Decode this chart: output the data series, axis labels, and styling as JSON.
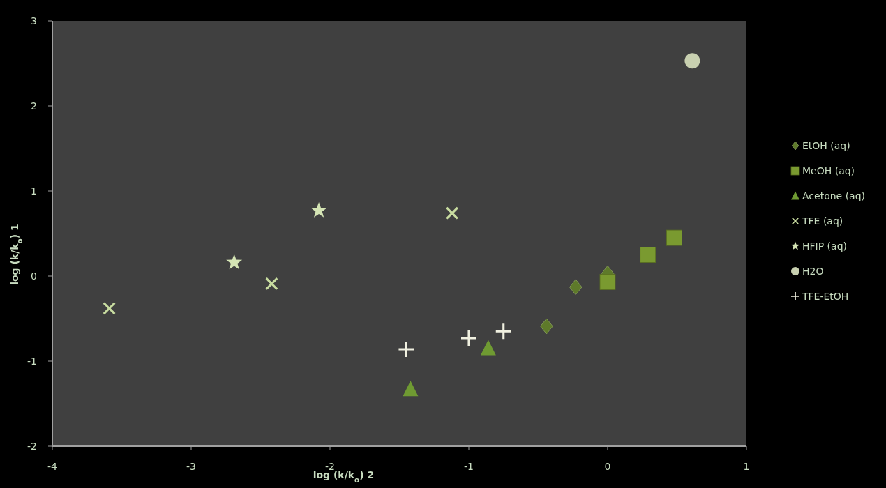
{
  "chart_data": {
    "type": "scatter",
    "xlabel": "log (k/k$_{o}$) 2",
    "ylabel": "log (k/k$_{o}$) 1",
    "xlim": [
      -4,
      1
    ],
    "ylim": [
      -2,
      3
    ],
    "xticks": [
      -4,
      -3,
      -2,
      -1,
      0,
      1
    ],
    "yticks": [
      -2,
      -1,
      0,
      1,
      2,
      3
    ],
    "grid": false,
    "legend": "right",
    "series": [
      {
        "name": "EtOH (aq)",
        "color": "#5e7a2a",
        "marker": "diamond",
        "x": [
          -0.44,
          -0.23,
          0.0
        ],
        "values": [
          -0.59,
          -0.13,
          0.03
        ]
      },
      {
        "name": "MeOH (aq)",
        "color": "#7a9a30",
        "marker": "square",
        "x": [
          0.0,
          0.29,
          0.48
        ],
        "values": [
          -0.07,
          0.25,
          0.45
        ]
      },
      {
        "name": "Acetone (aq)",
        "color": "#6f9a32",
        "marker": "triangle",
        "x": [
          -1.42,
          -0.86
        ],
        "values": [
          -1.33,
          -0.85
        ]
      },
      {
        "name": "TFE (aq)",
        "color": "#c8dca0",
        "marker": "cross",
        "x": [
          -3.59,
          -2.42,
          -1.12
        ],
        "values": [
          -0.38,
          -0.09,
          0.74
        ]
      },
      {
        "name": "HFIP (aq)",
        "color": "#d4e4b4",
        "marker": "star",
        "x": [
          -2.69,
          -2.08
        ],
        "values": [
          0.16,
          0.77
        ]
      },
      {
        "name": "H2O",
        "color": "#c8d0b0",
        "marker": "circle",
        "x": [
          0.61
        ],
        "values": [
          2.53
        ]
      },
      {
        "name": "TFE-EtOH",
        "color": "#f0f0e0",
        "marker": "plus",
        "x": [
          -1.45,
          -1.0,
          -0.75
        ],
        "values": [
          -0.86,
          -0.73,
          -0.65
        ]
      }
    ]
  }
}
